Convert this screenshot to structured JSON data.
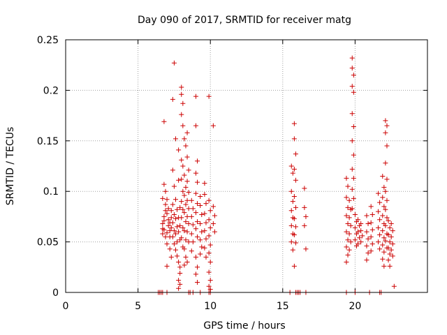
{
  "chart_data": {
    "type": "scatter",
    "title": "Day 090 of 2017, SRMTID for receiver matg",
    "xlabel": "GPS time / hours",
    "ylabel": "SRMTID / TECUs",
    "xlim": [
      0,
      25
    ],
    "ylim": [
      0,
      0.25
    ],
    "xticks": [
      0,
      5,
      10,
      15,
      20
    ],
    "xtick_labels": [
      "0",
      "5",
      "10",
      "15",
      "20"
    ],
    "yticks": [
      0,
      0.05,
      0.1,
      0.15,
      0.2,
      0.25
    ],
    "ytick_labels": [
      "0",
      "0.05",
      "0.1",
      "0.15",
      "0.2",
      "0.25"
    ],
    "grid": true,
    "marker": "plus",
    "color": "#cc0000",
    "series": [
      {
        "name": "SRMTID",
        "points": [
          [
            6.4,
            0.0
          ],
          [
            6.5,
            0.0
          ],
          [
            6.6,
            0.0
          ],
          [
            6.7,
            0.0
          ],
          [
            7.0,
            0.0
          ],
          [
            8.5,
            0.0
          ],
          [
            8.6,
            0.0
          ],
          [
            8.8,
            0.0
          ],
          [
            9.3,
            0.0
          ],
          [
            9.9,
            0.0
          ],
          [
            10.0,
            0.0
          ],
          [
            15.5,
            0.0
          ],
          [
            15.9,
            0.0
          ],
          [
            16.0,
            0.0
          ],
          [
            16.1,
            0.0
          ],
          [
            16.2,
            0.0
          ],
          [
            16.6,
            0.0
          ],
          [
            19.4,
            0.0
          ],
          [
            20.0,
            0.0
          ],
          [
            21.0,
            0.0
          ],
          [
            21.7,
            0.0
          ],
          [
            21.8,
            0.0
          ],
          [
            6.7,
            0.058
          ],
          [
            6.8,
            0.062
          ],
          [
            6.8,
            0.075
          ],
          [
            6.9,
            0.081
          ],
          [
            6.7,
            0.068
          ],
          [
            6.9,
            0.055
          ],
          [
            6.7,
            0.093
          ],
          [
            6.8,
            0.107
          ],
          [
            6.9,
            0.1
          ],
          [
            6.8,
            0.169
          ],
          [
            6.9,
            0.087
          ],
          [
            6.7,
            0.063
          ],
          [
            6.8,
            0.071
          ],
          [
            7.0,
            0.048
          ],
          [
            7.0,
            0.059
          ],
          [
            7.1,
            0.066
          ],
          [
            7.1,
            0.072
          ],
          [
            7.0,
            0.078
          ],
          [
            7.1,
            0.083
          ],
          [
            7.0,
            0.092
          ],
          [
            7.0,
            0.026
          ],
          [
            7.2,
            0.055
          ],
          [
            7.2,
            0.061
          ],
          [
            7.2,
            0.069
          ],
          [
            7.3,
            0.074
          ],
          [
            7.3,
            0.081
          ],
          [
            7.2,
            0.043
          ],
          [
            7.3,
            0.035
          ],
          [
            7.3,
            0.064
          ],
          [
            7.4,
            0.191
          ],
          [
            7.5,
            0.227
          ],
          [
            7.4,
            0.121
          ],
          [
            7.5,
            0.105
          ],
          [
            7.4,
            0.087
          ],
          [
            7.5,
            0.077
          ],
          [
            7.4,
            0.069
          ],
          [
            7.5,
            0.061
          ],
          [
            7.4,
            0.055
          ],
          [
            7.5,
            0.048
          ],
          [
            7.6,
            0.152
          ],
          [
            7.6,
            0.092
          ],
          [
            7.7,
            0.082
          ],
          [
            7.6,
            0.073
          ],
          [
            7.7,
            0.065
          ],
          [
            7.6,
            0.058
          ],
          [
            7.7,
            0.05
          ],
          [
            7.6,
            0.042
          ],
          [
            7.7,
            0.036
          ],
          [
            7.8,
            0.141
          ],
          [
            7.8,
            0.111
          ],
          [
            7.9,
            0.084
          ],
          [
            7.8,
            0.074
          ],
          [
            7.9,
            0.066
          ],
          [
            7.8,
            0.06
          ],
          [
            7.9,
            0.052
          ],
          [
            7.8,
            0.03
          ],
          [
            7.9,
            0.025
          ],
          [
            7.8,
            0.012
          ],
          [
            7.9,
            0.008
          ],
          [
            7.8,
            0.004
          ],
          [
            7.9,
            0.019
          ],
          [
            8.0,
            0.203
          ],
          [
            8.0,
            0.196
          ],
          [
            8.1,
            0.187
          ],
          [
            8.0,
            0.176
          ],
          [
            8.1,
            0.165
          ],
          [
            8.0,
            0.131
          ],
          [
            8.1,
            0.125
          ],
          [
            8.0,
            0.112
          ],
          [
            8.1,
            0.1
          ],
          [
            8.0,
            0.09
          ],
          [
            8.1,
            0.082
          ],
          [
            8.0,
            0.074
          ],
          [
            8.1,
            0.064
          ],
          [
            8.0,
            0.054
          ],
          [
            8.1,
            0.045
          ],
          [
            8.2,
            0.152
          ],
          [
            8.3,
            0.145
          ],
          [
            8.2,
            0.116
          ],
          [
            8.3,
            0.104
          ],
          [
            8.2,
            0.096
          ],
          [
            8.3,
            0.087
          ],
          [
            8.2,
            0.079
          ],
          [
            8.3,
            0.07
          ],
          [
            8.2,
            0.061
          ],
          [
            8.3,
            0.052
          ],
          [
            8.2,
            0.043
          ],
          [
            8.3,
            0.035
          ],
          [
            8.2,
            0.027
          ],
          [
            8.4,
            0.158
          ],
          [
            8.4,
            0.134
          ],
          [
            8.5,
            0.121
          ],
          [
            8.4,
            0.11
          ],
          [
            8.5,
            0.099
          ],
          [
            8.4,
            0.091
          ],
          [
            8.5,
            0.083
          ],
          [
            8.4,
            0.075
          ],
          [
            8.5,
            0.068
          ],
          [
            8.4,
            0.06
          ],
          [
            8.5,
            0.05
          ],
          [
            8.4,
            0.03
          ],
          [
            8.7,
            0.091
          ],
          [
            8.8,
            0.083
          ],
          [
            8.7,
            0.075
          ],
          [
            8.8,
            0.067
          ],
          [
            8.7,
            0.058
          ],
          [
            8.8,
            0.05
          ],
          [
            8.7,
            0.041
          ],
          [
            9.0,
            0.194
          ],
          [
            9.0,
            0.165
          ],
          [
            9.1,
            0.13
          ],
          [
            9.0,
            0.118
          ],
          [
            9.1,
            0.109
          ],
          [
            9.0,
            0.098
          ],
          [
            9.1,
            0.088
          ],
          [
            9.0,
            0.079
          ],
          [
            9.1,
            0.07
          ],
          [
            9.0,
            0.063
          ],
          [
            9.1,
            0.055
          ],
          [
            9.0,
            0.035
          ],
          [
            9.1,
            0.025
          ],
          [
            9.0,
            0.018
          ],
          [
            9.1,
            0.01
          ],
          [
            9.3,
            0.095
          ],
          [
            9.3,
            0.086
          ],
          [
            9.4,
            0.077
          ],
          [
            9.3,
            0.068
          ],
          [
            9.4,
            0.06
          ],
          [
            9.3,
            0.052
          ],
          [
            9.4,
            0.045
          ],
          [
            9.3,
            0.038
          ],
          [
            9.6,
            0.108
          ],
          [
            9.6,
            0.097
          ],
          [
            9.7,
            0.088
          ],
          [
            9.6,
            0.078
          ],
          [
            9.7,
            0.069
          ],
          [
            9.6,
            0.061
          ],
          [
            9.7,
            0.053
          ],
          [
            9.6,
            0.044
          ],
          [
            9.7,
            0.035
          ],
          [
            9.9,
            0.194
          ],
          [
            9.9,
            0.091
          ],
          [
            10.0,
            0.081
          ],
          [
            9.9,
            0.072
          ],
          [
            10.0,
            0.064
          ],
          [
            9.9,
            0.056
          ],
          [
            10.0,
            0.047
          ],
          [
            9.9,
            0.039
          ],
          [
            10.0,
            0.03
          ],
          [
            9.9,
            0.02
          ],
          [
            10.0,
            0.012
          ],
          [
            9.9,
            0.006
          ],
          [
            10.0,
            0.003
          ],
          [
            10.2,
            0.165
          ],
          [
            10.2,
            0.085
          ],
          [
            10.3,
            0.076
          ],
          [
            10.2,
            0.068
          ],
          [
            10.3,
            0.06
          ],
          [
            15.6,
            0.125
          ],
          [
            15.7,
            0.118
          ],
          [
            15.6,
            0.1
          ],
          [
            15.7,
            0.09
          ],
          [
            15.6,
            0.081
          ],
          [
            15.7,
            0.074
          ],
          [
            15.6,
            0.066
          ],
          [
            15.7,
            0.058
          ],
          [
            15.6,
            0.05
          ],
          [
            15.7,
            0.042
          ],
          [
            15.8,
            0.167
          ],
          [
            15.8,
            0.152
          ],
          [
            15.9,
            0.137
          ],
          [
            15.8,
            0.122
          ],
          [
            15.9,
            0.111
          ],
          [
            15.8,
            0.095
          ],
          [
            15.9,
            0.084
          ],
          [
            15.8,
            0.073
          ],
          [
            15.9,
            0.065
          ],
          [
            15.8,
            0.057
          ],
          [
            15.9,
            0.049
          ],
          [
            15.8,
            0.026
          ],
          [
            16.5,
            0.103
          ],
          [
            16.5,
            0.084
          ],
          [
            16.6,
            0.075
          ],
          [
            16.5,
            0.066
          ],
          [
            16.6,
            0.043
          ],
          [
            19.4,
            0.113
          ],
          [
            19.5,
            0.105
          ],
          [
            19.4,
            0.094
          ],
          [
            19.5,
            0.084
          ],
          [
            19.4,
            0.076
          ],
          [
            19.5,
            0.068
          ],
          [
            19.4,
            0.06
          ],
          [
            19.5,
            0.052
          ],
          [
            19.4,
            0.045
          ],
          [
            19.5,
            0.037
          ],
          [
            19.4,
            0.03
          ],
          [
            19.6,
            0.091
          ],
          [
            19.7,
            0.082
          ],
          [
            19.6,
            0.074
          ],
          [
            19.7,
            0.066
          ],
          [
            19.6,
            0.058
          ],
          [
            19.7,
            0.05
          ],
          [
            19.6,
            0.042
          ],
          [
            19.8,
            0.232
          ],
          [
            19.8,
            0.222
          ],
          [
            19.9,
            0.215
          ],
          [
            19.8,
            0.204
          ],
          [
            19.9,
            0.198
          ],
          [
            19.8,
            0.177
          ],
          [
            19.9,
            0.164
          ],
          [
            19.8,
            0.15
          ],
          [
            19.9,
            0.136
          ],
          [
            19.8,
            0.122
          ],
          [
            19.9,
            0.113
          ],
          [
            19.8,
            0.102
          ],
          [
            19.9,
            0.093
          ],
          [
            19.8,
            0.083
          ],
          [
            20.0,
            0.077
          ],
          [
            20.1,
            0.07
          ],
          [
            20.0,
            0.064
          ],
          [
            20.1,
            0.058
          ],
          [
            20.0,
            0.052
          ],
          [
            20.1,
            0.046
          ],
          [
            20.2,
            0.072
          ],
          [
            20.3,
            0.066
          ],
          [
            20.2,
            0.06
          ],
          [
            20.3,
            0.054
          ],
          [
            20.2,
            0.048
          ],
          [
            20.4,
            0.068
          ],
          [
            20.4,
            0.061
          ],
          [
            20.5,
            0.056
          ],
          [
            20.4,
            0.05
          ],
          [
            20.8,
            0.076
          ],
          [
            20.9,
            0.068
          ],
          [
            20.8,
            0.06
          ],
          [
            20.9,
            0.053
          ],
          [
            20.8,
            0.046
          ],
          [
            20.9,
            0.039
          ],
          [
            20.8,
            0.032
          ],
          [
            21.1,
            0.085
          ],
          [
            21.2,
            0.077
          ],
          [
            21.1,
            0.069
          ],
          [
            21.2,
            0.062
          ],
          [
            21.1,
            0.055
          ],
          [
            21.2,
            0.048
          ],
          [
            21.1,
            0.041
          ],
          [
            21.6,
            0.098
          ],
          [
            21.7,
            0.089
          ],
          [
            21.6,
            0.08
          ],
          [
            21.7,
            0.072
          ],
          [
            21.6,
            0.064
          ],
          [
            21.7,
            0.057
          ],
          [
            21.6,
            0.05
          ],
          [
            21.7,
            0.043
          ],
          [
            21.9,
            0.115
          ],
          [
            22.0,
            0.104
          ],
          [
            21.9,
            0.094
          ],
          [
            22.0,
            0.085
          ],
          [
            21.9,
            0.076
          ],
          [
            22.0,
            0.068
          ],
          [
            21.9,
            0.061
          ],
          [
            22.0,
            0.054
          ],
          [
            21.9,
            0.047
          ],
          [
            22.0,
            0.04
          ],
          [
            21.9,
            0.033
          ],
          [
            22.0,
            0.026
          ],
          [
            22.1,
            0.17
          ],
          [
            22.2,
            0.165
          ],
          [
            22.1,
            0.158
          ],
          [
            22.2,
            0.145
          ],
          [
            22.1,
            0.128
          ],
          [
            22.2,
            0.112
          ],
          [
            22.1,
            0.1
          ],
          [
            22.2,
            0.091
          ],
          [
            22.1,
            0.082
          ],
          [
            22.2,
            0.074
          ],
          [
            22.1,
            0.066
          ],
          [
            22.2,
            0.058
          ],
          [
            22.1,
            0.051
          ],
          [
            22.2,
            0.044
          ],
          [
            22.3,
            0.071
          ],
          [
            22.4,
            0.064
          ],
          [
            22.3,
            0.057
          ],
          [
            22.4,
            0.05
          ],
          [
            22.3,
            0.044
          ],
          [
            22.4,
            0.038
          ],
          [
            22.3,
            0.032
          ],
          [
            22.4,
            0.026
          ],
          [
            22.5,
            0.068
          ],
          [
            22.6,
            0.061
          ],
          [
            22.5,
            0.055
          ],
          [
            22.6,
            0.048
          ],
          [
            22.5,
            0.042
          ],
          [
            22.6,
            0.036
          ],
          [
            22.7,
            0.006
          ]
        ]
      }
    ]
  }
}
